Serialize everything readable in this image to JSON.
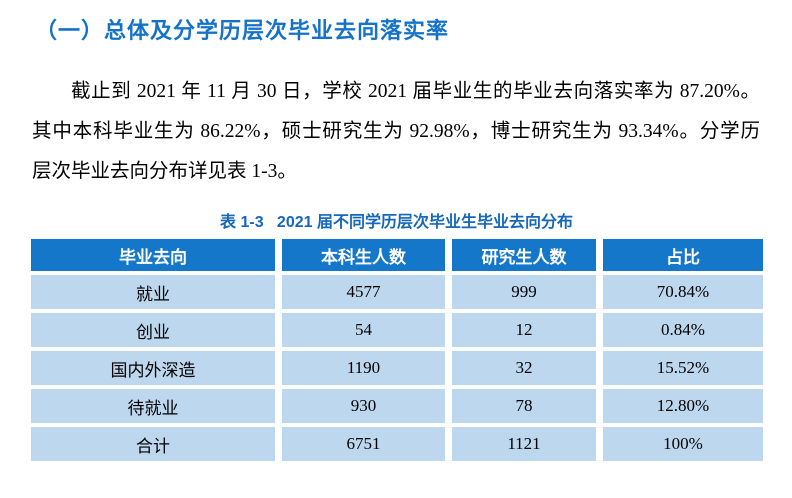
{
  "page": {
    "heading": "（一）总体及分学历层次毕业去向落实率",
    "paragraph": {
      "line1": "截止到 2021 年 11 月 30 日，学校 2021 届毕业生的毕业去向落实率为 87.20%。",
      "line2": "其中本科毕业生为 86.22%，硕士研究生为 92.98%，博士研究生为 93.34%。分学历",
      "line3": "层次毕业去向分布详见表 1-3。"
    },
    "table_caption": "表 1-3   2021 届不同学历层次毕业生毕业去向分布"
  },
  "table": {
    "headers": [
      "毕业去向",
      "本科生人数",
      "研究生人数",
      "占比"
    ],
    "rows": [
      [
        "就业",
        "4577",
        "999",
        "70.84%"
      ],
      [
        "创业",
        "54",
        "12",
        "0.84%"
      ],
      [
        "国内外深造",
        "1190",
        "32",
        "15.52%"
      ],
      [
        "待就业",
        "930",
        "78",
        "12.80%"
      ],
      [
        "合计",
        "6751",
        "1121",
        "100%"
      ]
    ]
  },
  "colors": {
    "heading_blue": "#1473c9",
    "caption_blue": "#1567bd",
    "table_header_bg": "#1577c9",
    "table_header_text": "#ffffff",
    "table_cell_bg": "#bdd7ee",
    "body_text": "#000000"
  }
}
